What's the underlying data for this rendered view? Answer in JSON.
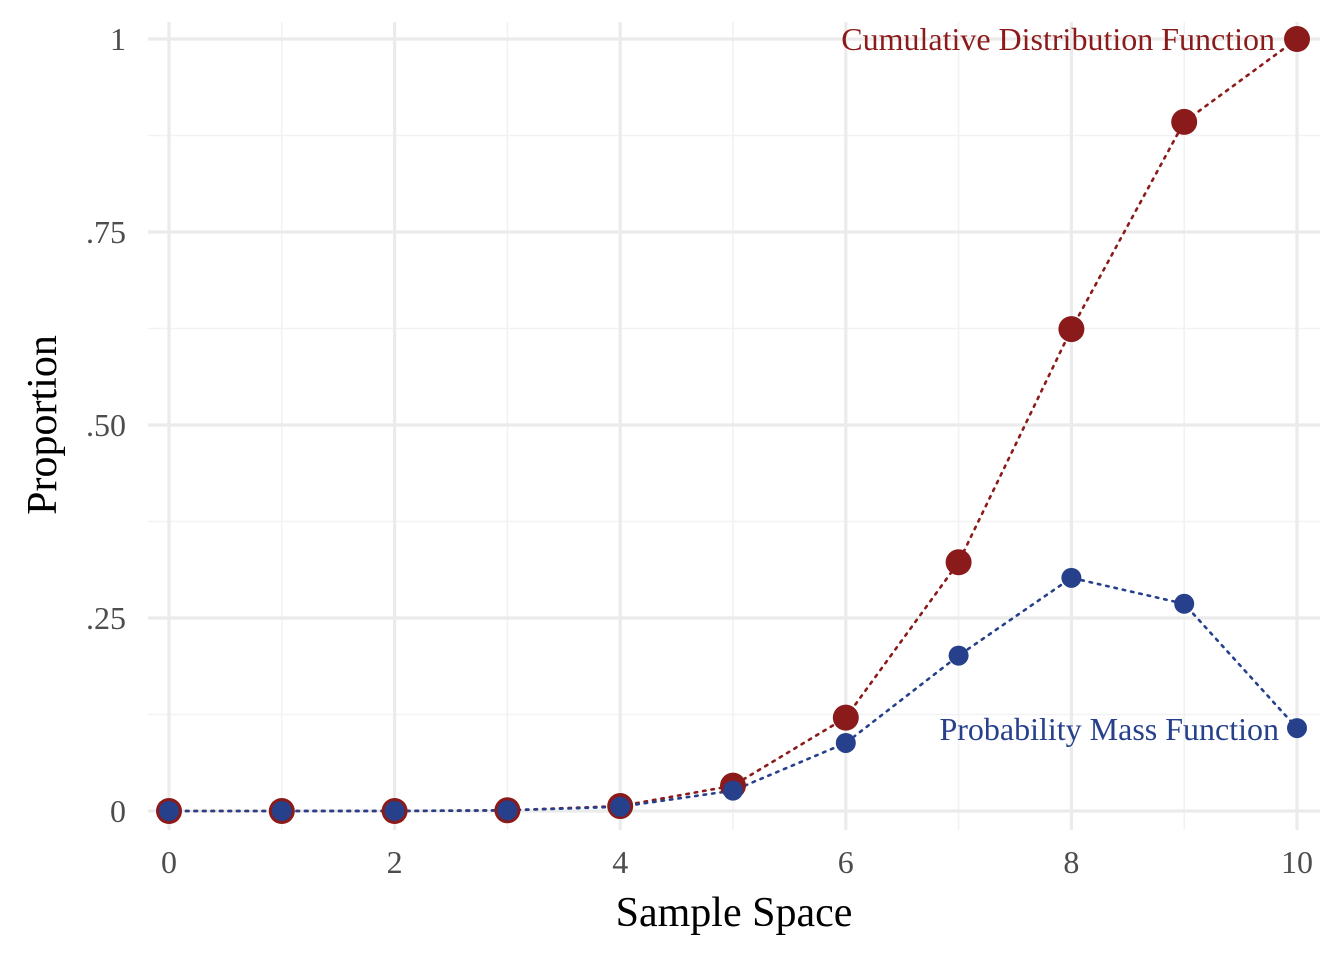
{
  "chart_data": {
    "type": "scatter",
    "title": "",
    "xlabel": "Sample Space",
    "ylabel": "Proportion",
    "x": [
      0,
      1,
      2,
      3,
      4,
      5,
      6,
      7,
      8,
      9,
      10
    ],
    "xlim": [
      0,
      10
    ],
    "ylim": [
      0,
      1
    ],
    "x_ticks": [
      0,
      2,
      4,
      6,
      8,
      10
    ],
    "x_tick_labels": [
      "0",
      "2",
      "4",
      "6",
      "8",
      "10"
    ],
    "y_ticks": [
      0,
      0.25,
      0.5,
      0.75,
      1
    ],
    "y_tick_labels": [
      "0",
      ".25",
      ".50",
      ".75",
      "1"
    ],
    "grid": true,
    "legend": "none",
    "series": [
      {
        "name": "Cumulative Distribution Function",
        "color": "#8b1a1a",
        "line_style": "dotted",
        "values": [
          0.0,
          0.0,
          0.0,
          0.0009,
          0.0064,
          0.0328,
          0.1209,
          0.3222,
          0.6242,
          0.8926,
          1.0
        ]
      },
      {
        "name": "Probability Mass Function",
        "color": "#26408b",
        "line_style": "dotted",
        "values": [
          0.0,
          0.0,
          0.0001,
          0.0008,
          0.0055,
          0.0264,
          0.0881,
          0.2013,
          0.302,
          0.2684,
          0.1074
        ]
      }
    ]
  }
}
